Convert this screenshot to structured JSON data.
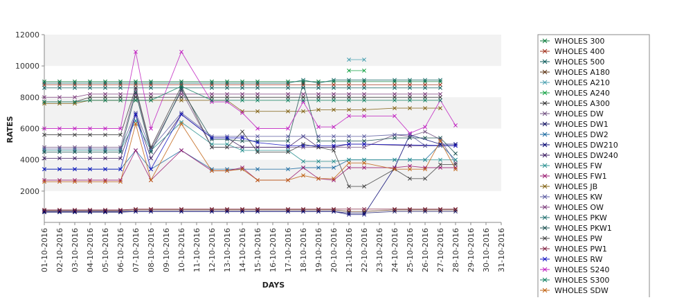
{
  "chart_data": {
    "type": "line",
    "title": "",
    "xlabel": "DAYS",
    "ylabel": "RATES",
    "ylim": [
      0,
      12000
    ],
    "yticks": [
      2000,
      4000,
      6000,
      8000,
      10000,
      12000
    ],
    "grid": false,
    "alternating_bands": true,
    "legend_position": "right",
    "categories": [
      "01-10-2016",
      "02-10-2016",
      "03-10-2016",
      "04-10-2016",
      "05-10-2016",
      "06-10-2016",
      "07-10-2016",
      "08-10-2016",
      "09-10-2016",
      "10-10-2016",
      "11-10-2016",
      "12-10-2016",
      "13-10-2016",
      "14-10-2016",
      "15-10-2016",
      "16-10-2016",
      "17-10-2016",
      "18-10-2016",
      "19-10-2016",
      "20-10-2016",
      "21-10-2016",
      "22-10-2016",
      "23-10-2016",
      "24-10-2016",
      "25-10-2016",
      "26-10-2016",
      "27-10-2016",
      "28-10-2016",
      "29-10-2016",
      "30-10-2016",
      "31-10-2016"
    ],
    "series": [
      {
        "name": "WHOLES 300",
        "color": "#0a7a3a",
        "values": [
          9000,
          9000,
          9000,
          9000,
          9000,
          9000,
          9000,
          9000,
          null,
          9000,
          null,
          9000,
          9000,
          9000,
          9000,
          null,
          9000,
          9000,
          9000,
          9000,
          9000,
          9000,
          null,
          9000,
          9000,
          9000,
          9000,
          null,
          null,
          null,
          null
        ]
      },
      {
        "name": "WHOLES 400",
        "color": "#a0301a",
        "values": [
          8800,
          8800,
          8800,
          8800,
          8800,
          8800,
          8800,
          8800,
          null,
          8800,
          null,
          8800,
          8800,
          8800,
          8800,
          null,
          8800,
          8800,
          8800,
          8800,
          8800,
          8800,
          null,
          8800,
          8800,
          8800,
          8800,
          null,
          null,
          null,
          null
        ]
      },
      {
        "name": "WHOLES 500",
        "color": "#0a5a5a",
        "values": [
          8600,
          8600,
          8600,
          8600,
          8600,
          8600,
          8600,
          8600,
          null,
          8600,
          null,
          8600,
          8600,
          8600,
          8600,
          null,
          8600,
          8600,
          8600,
          8600,
          8600,
          8600,
          null,
          8600,
          8600,
          8600,
          8600,
          null,
          null,
          null,
          null
        ]
      },
      {
        "name": "WHOLES A180",
        "color": "#5a3010",
        "values": [
          750,
          750,
          750,
          750,
          750,
          750,
          800,
          800,
          null,
          800,
          null,
          800,
          800,
          800,
          800,
          null,
          800,
          800,
          800,
          800,
          700,
          700,
          null,
          800,
          800,
          800,
          800,
          800,
          null,
          null,
          null
        ]
      },
      {
        "name": "WHOLES A210",
        "color": "#4aa0b0",
        "values": [
          null,
          null,
          null,
          null,
          null,
          null,
          null,
          null,
          null,
          null,
          null,
          null,
          null,
          null,
          null,
          null,
          null,
          null,
          null,
          null,
          10400,
          10400,
          null,
          null,
          null,
          null,
          null,
          null,
          null,
          null,
          null
        ]
      },
      {
        "name": "WHOLES A240",
        "color": "#10a040",
        "values": [
          null,
          null,
          null,
          null,
          null,
          null,
          null,
          null,
          null,
          null,
          null,
          null,
          null,
          null,
          null,
          null,
          null,
          null,
          null,
          null,
          9700,
          9700,
          null,
          null,
          null,
          null,
          null,
          null,
          null,
          null,
          null
        ]
      },
      {
        "name": "WHOLES A300",
        "color": "#303030",
        "values": [
          7700,
          7700,
          7700,
          8000,
          8000,
          8000,
          8000,
          8000,
          null,
          8000,
          null,
          8000,
          8000,
          8000,
          8000,
          null,
          8000,
          8000,
          8000,
          8000,
          8000,
          8000,
          null,
          8000,
          8000,
          8000,
          8000,
          null,
          null,
          null,
          null
        ]
      },
      {
        "name": "WHOLES DW",
        "color": "#705080",
        "values": [
          4800,
          4800,
          4800,
          4800,
          4800,
          4800,
          8500,
          4700,
          null,
          8400,
          null,
          4800,
          4800,
          4800,
          4800,
          null,
          4800,
          4800,
          4800,
          4800,
          4800,
          4800,
          null,
          5600,
          5500,
          5800,
          5300,
          3800,
          null,
          null,
          null
        ]
      },
      {
        "name": "WHOLES DW1",
        "color": "#101060",
        "values": [
          650,
          650,
          650,
          650,
          650,
          650,
          700,
          700,
          null,
          700,
          null,
          700,
          700,
          700,
          700,
          null,
          700,
          700,
          700,
          700,
          600,
          600,
          null,
          700,
          700,
          700,
          700,
          700,
          null,
          null,
          null
        ]
      },
      {
        "name": "WHOLES DW2",
        "color": "#1a6aa0",
        "values": [
          3400,
          3400,
          3400,
          3400,
          3400,
          3400,
          4600,
          3400,
          null,
          4600,
          null,
          3400,
          3400,
          3400,
          3400,
          null,
          3400,
          3500,
          3500,
          3500,
          4000,
          4000,
          null,
          4000,
          4000,
          4000,
          5000,
          4000,
          null,
          null,
          null
        ]
      },
      {
        "name": "WHOLES DW210",
        "color": "#000070",
        "values": [
          700,
          700,
          700,
          700,
          700,
          700,
          700,
          700,
          null,
          700,
          null,
          700,
          700,
          700,
          700,
          null,
          700,
          700,
          700,
          700,
          500,
          500,
          null,
          3500,
          5600,
          null,
          5000,
          5000,
          null,
          null,
          null
        ]
      },
      {
        "name": "WHOLES DW240",
        "color": "#3a1a60",
        "values": [
          4100,
          4100,
          4100,
          4100,
          4100,
          4100,
          6900,
          4100,
          null,
          6900,
          null,
          5400,
          5400,
          4800,
          4800,
          null,
          4800,
          5500,
          4800,
          4800,
          5000,
          5000,
          null,
          null,
          4900,
          4900,
          4900,
          4900,
          null,
          null,
          null
        ]
      },
      {
        "name": "WHOLES FW",
        "color": "#2a9090",
        "values": [
          4600,
          4600,
          4600,
          4600,
          4600,
          4600,
          6500,
          4600,
          null,
          6400,
          null,
          5000,
          5000,
          4600,
          4600,
          null,
          4600,
          3900,
          3900,
          3900,
          4000,
          4000,
          null,
          4000,
          4000,
          4000,
          4000,
          4000,
          null,
          null,
          null
        ]
      },
      {
        "name": "WHOLES FW1",
        "color": "#9a1a70",
        "values": [
          2700,
          2700,
          2700,
          2700,
          2700,
          2700,
          4600,
          2700,
          null,
          4600,
          null,
          3300,
          3300,
          3500,
          2700,
          null,
          2700,
          3500,
          2800,
          2700,
          3500,
          3500,
          null,
          3500,
          3600,
          3500,
          3500,
          3500,
          null,
          null,
          null
        ]
      },
      {
        "name": "WHOLES JB",
        "color": "#806010",
        "values": [
          7600,
          7600,
          7600,
          7800,
          7800,
          7800,
          7800,
          7800,
          null,
          7800,
          null,
          7800,
          7800,
          7100,
          7100,
          null,
          7100,
          7100,
          7200,
          7200,
          7200,
          7200,
          null,
          7300,
          7300,
          7300,
          7300,
          null,
          null,
          null,
          null
        ]
      },
      {
        "name": "WHOLES KW",
        "color": "#5a5aa0",
        "values": [
          4700,
          4700,
          4700,
          4700,
          4700,
          4700,
          7000,
          4700,
          null,
          7000,
          null,
          5500,
          5500,
          5500,
          5500,
          null,
          5500,
          5500,
          5500,
          5500,
          5500,
          5500,
          null,
          5600,
          5600,
          4900,
          4900,
          null,
          null,
          null,
          null
        ]
      },
      {
        "name": "WHOLES OW",
        "color": "#7a3a7a",
        "values": [
          8000,
          8000,
          8000,
          8200,
          8200,
          8200,
          8200,
          8200,
          null,
          8200,
          null,
          8200,
          8200,
          8200,
          8200,
          null,
          8200,
          8200,
          8200,
          8200,
          8200,
          8200,
          null,
          8200,
          8200,
          8200,
          8200,
          null,
          null,
          null,
          null
        ]
      },
      {
        "name": "WHOLES PKW",
        "color": "#207070",
        "values": [
          8900,
          8900,
          8900,
          8900,
          8900,
          8900,
          8900,
          8900,
          null,
          8900,
          null,
          8900,
          8900,
          8900,
          8900,
          null,
          8900,
          9100,
          8900,
          9100,
          9100,
          9100,
          null,
          9100,
          9100,
          9100,
          9100,
          null,
          null,
          null,
          null
        ]
      },
      {
        "name": "WHOLES PKW1",
        "color": "#1a5050",
        "values": [
          4500,
          4500,
          4500,
          4500,
          4500,
          4500,
          8300,
          4500,
          null,
          8500,
          null,
          5300,
          5300,
          5200,
          5200,
          null,
          5200,
          8900,
          5200,
          5200,
          5200,
          5200,
          null,
          5400,
          5400,
          5400,
          5400,
          4400,
          null,
          null,
          null
        ]
      },
      {
        "name": "WHOLES PW",
        "color": "#404040",
        "values": [
          5600,
          5600,
          5600,
          5600,
          5600,
          5600,
          8600,
          4800,
          null,
          8700,
          null,
          4800,
          4800,
          5800,
          4500,
          null,
          4500,
          5000,
          4800,
          4600,
          2300,
          2300,
          null,
          3400,
          2800,
          2800,
          3700,
          3700,
          null,
          null,
          null
        ]
      },
      {
        "name": "WHOLES PW1",
        "color": "#802040",
        "values": [
          800,
          800,
          800,
          800,
          800,
          800,
          850,
          850,
          null,
          850,
          null,
          850,
          850,
          850,
          850,
          null,
          850,
          850,
          850,
          850,
          850,
          850,
          null,
          850,
          850,
          850,
          850,
          850,
          null,
          null,
          null
        ]
      },
      {
        "name": "WHOLES RW",
        "color": "#1010c0",
        "values": [
          3400,
          3400,
          3400,
          3400,
          3400,
          3400,
          6900,
          3400,
          null,
          6900,
          null,
          5400,
          5400,
          5400,
          5100,
          null,
          4900,
          4900,
          4900,
          4900,
          5000,
          5000,
          null,
          null,
          null,
          null,
          null,
          4900,
          null,
          null,
          null
        ]
      },
      {
        "name": "WHOLES S240",
        "color": "#c020c0",
        "values": [
          6000,
          6000,
          6000,
          6000,
          6000,
          6000,
          10900,
          6000,
          null,
          10900,
          null,
          7700,
          7700,
          7000,
          6000,
          null,
          6000,
          7700,
          6100,
          6100,
          6800,
          6800,
          null,
          6800,
          5700,
          6100,
          7800,
          6200,
          null,
          null,
          null
        ]
      },
      {
        "name": "WHOLES S300",
        "color": "#108060",
        "values": [
          7700,
          7700,
          7700,
          7800,
          7800,
          7800,
          7800,
          7800,
          null,
          8700,
          null,
          7800,
          7800,
          7800,
          7800,
          null,
          7800,
          7800,
          7800,
          7800,
          7800,
          7800,
          null,
          7800,
          7800,
          7800,
          7800,
          null,
          null,
          null,
          null
        ]
      },
      {
        "name": "WHOLES SDW",
        "color": "#c06010",
        "values": [
          2600,
          2600,
          2600,
          2600,
          2600,
          2600,
          6300,
          2700,
          null,
          6300,
          null,
          3300,
          3300,
          3400,
          2700,
          null,
          2700,
          3000,
          2800,
          2800,
          3800,
          3800,
          null,
          3400,
          3400,
          3400,
          5200,
          3400,
          null,
          null,
          null
        ]
      }
    ]
  }
}
